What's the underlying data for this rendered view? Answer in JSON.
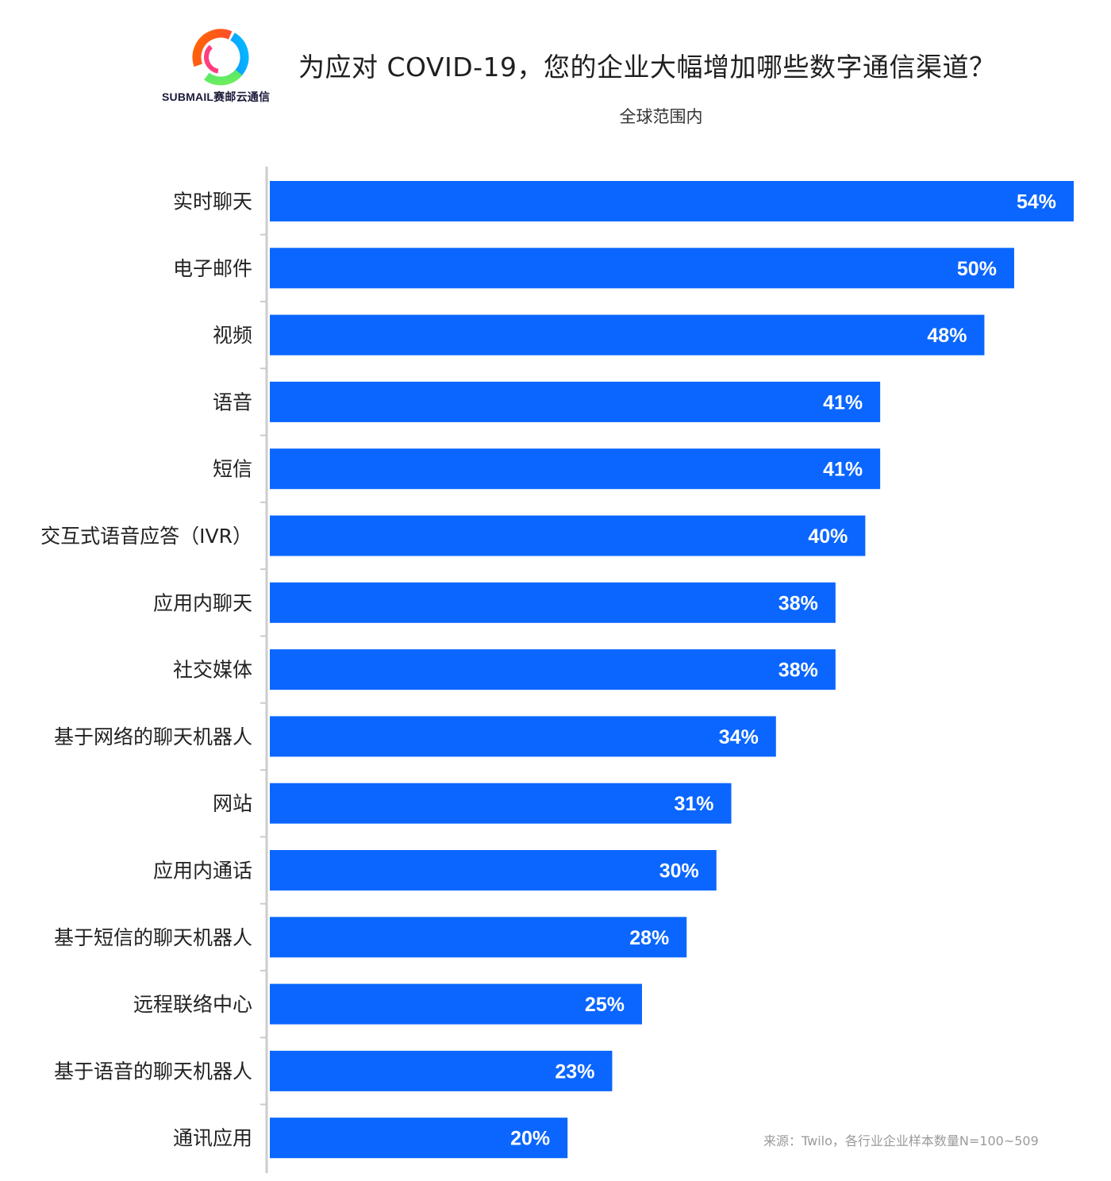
{
  "brand": {
    "logo_text": "SUBMAIL赛邮云通信",
    "icon": "submail-ring-icon"
  },
  "header": {
    "title": "为应对 COVID-19，您的企业大幅增加哪些数字通信渠道？",
    "subtitle": "全球范围内"
  },
  "footer": {
    "source": "来源：Twilo，各行业企业样本数量N=100~509"
  },
  "colors": {
    "bar": "#0a66ff",
    "axis": "#cccccc",
    "label": "#222222",
    "value_label": "#ffffff"
  },
  "chart_data": {
    "type": "bar",
    "orientation": "horizontal",
    "title": "为应对 COVID-19，您的企业大幅增加哪些数字通信渠道？",
    "subtitle": "全球范围内",
    "xlim": [
      0,
      54
    ],
    "grid": false,
    "legend": "none",
    "value_suffix": "%",
    "categories": [
      "实时聊天",
      "电子邮件",
      "视频",
      "语音",
      "短信",
      "交互式语音应答（IVR）",
      "应用内聊天",
      "社交媒体",
      "基于网络的聊天机器人",
      "网站",
      "应用内通话",
      "基于短信的聊天机器人",
      "远程联络中心",
      "基于语音的聊天机器人",
      "通讯应用"
    ],
    "values": [
      54,
      50,
      48,
      41,
      41,
      40,
      38,
      38,
      34,
      31,
      30,
      28,
      25,
      23,
      20
    ]
  }
}
